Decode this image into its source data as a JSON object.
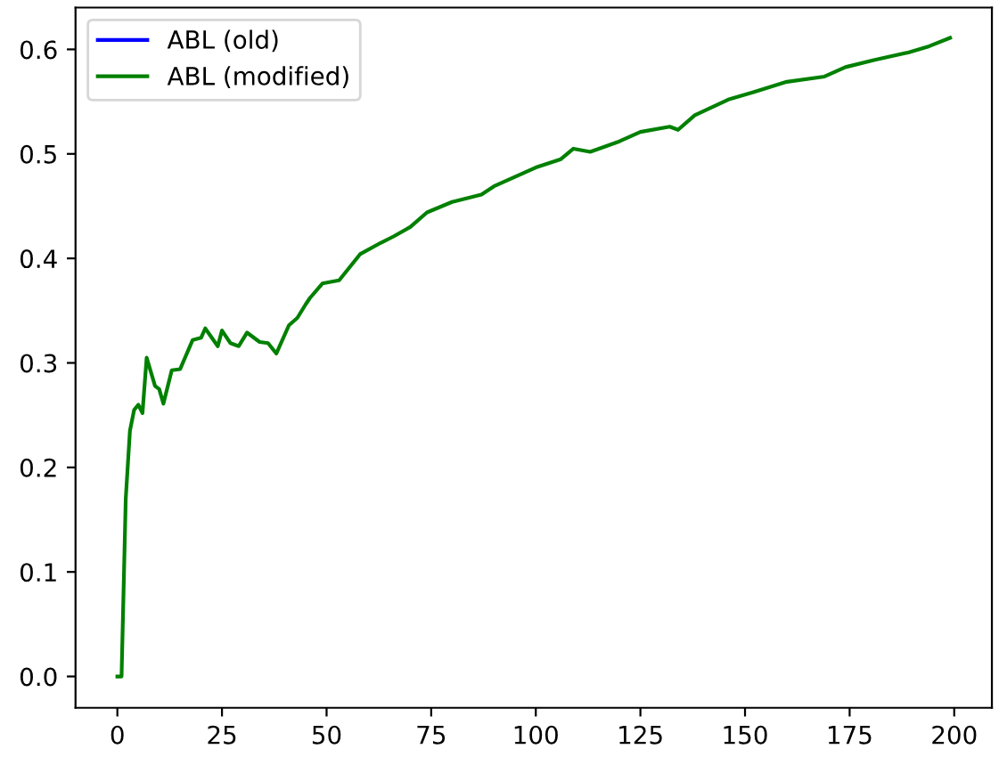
{
  "chart_data": {
    "type": "line",
    "x": [
      0,
      1,
      2,
      3,
      4,
      5,
      6,
      7,
      9,
      10,
      11,
      13,
      15,
      18,
      20,
      21,
      24,
      25,
      27,
      29,
      31,
      34,
      36,
      38,
      41,
      43,
      45,
      46,
      49,
      53,
      58,
      63,
      66,
      70,
      74,
      80,
      87,
      90,
      95,
      100,
      106,
      109,
      113,
      120,
      125,
      132,
      134,
      138,
      146,
      152,
      160,
      169,
      174,
      181,
      189,
      194,
      199
    ],
    "series": [
      {
        "name": "ABL (old)",
        "color": "#0000ff",
        "values": [
          null,
          null,
          null,
          null,
          null,
          null,
          null,
          null,
          null,
          null,
          null,
          null,
          null,
          null,
          null,
          null,
          null,
          null,
          null,
          null,
          null,
          null,
          null,
          null,
          null,
          null,
          null,
          null,
          null,
          null,
          null,
          null,
          null,
          null,
          null,
          null,
          null,
          null,
          null,
          null,
          null,
          null,
          null,
          null,
          null,
          null,
          null,
          null,
          null,
          null,
          null,
          null,
          null,
          null,
          null,
          null,
          null
        ]
      },
      {
        "name": "ABL (modified)",
        "color": "#008000",
        "values": [
          0.0,
          0.0,
          0.17,
          0.235,
          0.255,
          0.26,
          0.252,
          0.305,
          0.278,
          0.275,
          0.261,
          0.293,
          0.294,
          0.322,
          0.324,
          0.333,
          0.316,
          0.331,
          0.319,
          0.316,
          0.329,
          0.32,
          0.319,
          0.309,
          0.336,
          0.343,
          0.356,
          0.362,
          0.376,
          0.379,
          0.404,
          0.415,
          0.421,
          0.43,
          0.444,
          0.454,
          0.461,
          0.469,
          0.478,
          0.487,
          0.495,
          0.505,
          0.502,
          0.512,
          0.521,
          0.526,
          0.523,
          0.537,
          0.552,
          0.559,
          0.569,
          0.574,
          0.583,
          0.59,
          0.597,
          0.603,
          0.611
        ]
      }
    ],
    "xlim": [
      -10,
      209
    ],
    "xticks": [
      0,
      25,
      50,
      75,
      100,
      125,
      150,
      175,
      200
    ],
    "ylim": [
      -0.03,
      0.64
    ],
    "yticks": [
      {
        "value": 0.0,
        "label": "0.0"
      },
      0.1,
      0.2,
      0.3,
      0.4,
      0.5,
      0.6
    ],
    "legend": "top left",
    "grid": false
  }
}
